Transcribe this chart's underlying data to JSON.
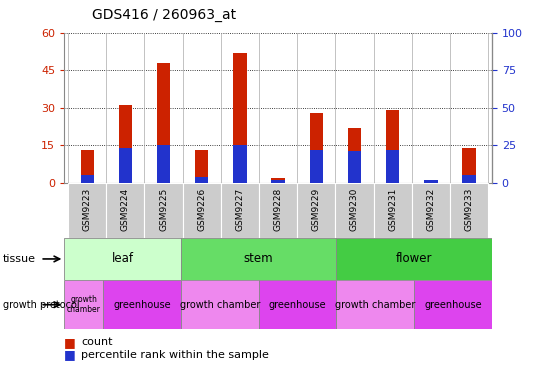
{
  "title": "GDS416 / 260963_at",
  "samples": [
    "GSM9223",
    "GSM9224",
    "GSM9225",
    "GSM9226",
    "GSM9227",
    "GSM9228",
    "GSM9229",
    "GSM9230",
    "GSM9231",
    "GSM9232",
    "GSM9233"
  ],
  "counts": [
    13,
    31,
    48,
    13,
    52,
    2,
    28,
    22,
    29,
    1,
    14
  ],
  "percentiles": [
    5,
    23,
    25,
    4,
    25,
    2,
    22,
    21,
    22,
    2,
    5
  ],
  "ylim_left": [
    0,
    60
  ],
  "ylim_right": [
    0,
    100
  ],
  "yticks_left": [
    0,
    15,
    30,
    45,
    60
  ],
  "yticks_right": [
    0,
    25,
    50,
    75,
    100
  ],
  "tissue_groups": [
    {
      "label": "leaf",
      "start": 0,
      "end": 3,
      "color": "#ccffcc"
    },
    {
      "label": "stem",
      "start": 3,
      "end": 7,
      "color": "#66dd66"
    },
    {
      "label": "flower",
      "start": 7,
      "end": 11,
      "color": "#44cc44"
    }
  ],
  "growth_groups": [
    {
      "label": "growth\nchamber",
      "start": 0,
      "end": 1,
      "color": "#ee88ee",
      "small": true
    },
    {
      "label": "greenhouse",
      "start": 1,
      "end": 3,
      "color": "#dd44ee",
      "small": false
    },
    {
      "label": "growth chamber",
      "start": 3,
      "end": 5,
      "color": "#ee88ee",
      "small": false
    },
    {
      "label": "greenhouse",
      "start": 5,
      "end": 7,
      "color": "#dd44ee",
      "small": false
    },
    {
      "label": "growth chamber",
      "start": 7,
      "end": 9,
      "color": "#ee88ee",
      "small": false
    },
    {
      "label": "greenhouse",
      "start": 9,
      "end": 11,
      "color": "#dd44ee",
      "small": false
    }
  ],
  "bar_width": 0.35,
  "count_color": "#cc2200",
  "percentile_color": "#2233cc",
  "background_color": "#ffffff",
  "left_axis_color": "#cc2200",
  "right_axis_color": "#2233cc",
  "xticklabel_bg": "#cccccc"
}
